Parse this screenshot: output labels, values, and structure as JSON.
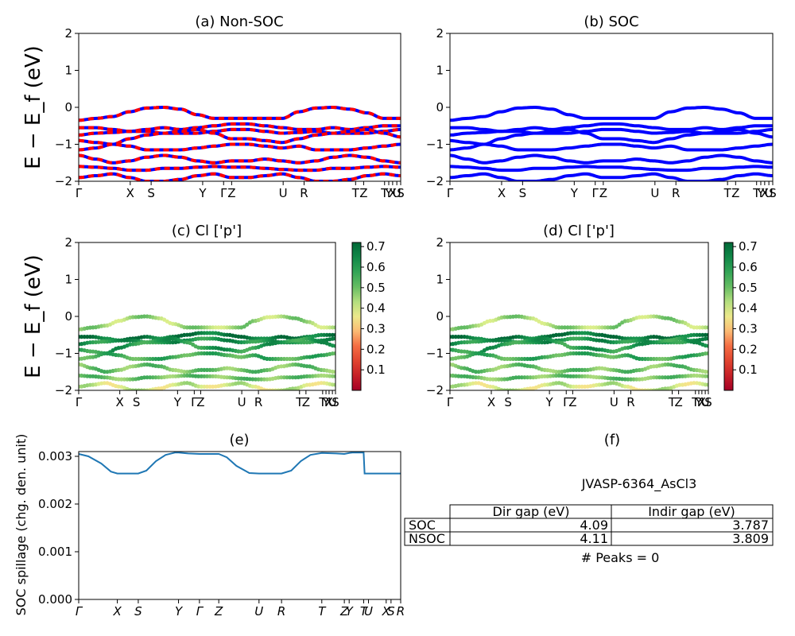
{
  "panels": {
    "a": {
      "title": "(a) Non-SOC"
    },
    "b": {
      "title": "(b) SOC"
    },
    "c": {
      "title": "(c)  Cl ['p']"
    },
    "d": {
      "title": "(d) Cl ['p']"
    },
    "e": {
      "title": "(e)"
    },
    "f": {
      "title": "(f)"
    }
  },
  "band_ylabel": "E − E_f (eV)",
  "spillage_ylabel": "SOC spillage (chg. den. unit)",
  "kpath": {
    "labels_top": [
      "Γ",
      "X",
      "S",
      "Y",
      "Γ",
      "Z",
      "U",
      "R",
      "T",
      "Z",
      "T",
      "Y",
      "X",
      "U",
      "S"
    ],
    "positions_top": [
      0,
      0.16,
      0.225,
      0.385,
      0.45,
      0.475,
      0.635,
      0.7,
      0.86,
      0.885,
      0.95,
      0.963,
      0.975,
      0.988,
      1.0
    ],
    "labels_mid": [
      "Γ",
      "X",
      "S",
      "Y",
      "Γ",
      "Z",
      "U",
      "R",
      "T",
      "Z",
      "T",
      "Y",
      "X",
      "U",
      "S"
    ],
    "positions_mid": [
      0,
      0.16,
      0.225,
      0.385,
      0.45,
      0.475,
      0.635,
      0.7,
      0.86,
      0.885,
      0.95,
      0.963,
      0.975,
      0.988,
      1.0
    ],
    "labels_e": [
      "Γ",
      "X",
      "S",
      "Y",
      "Γ",
      "Z",
      "U",
      "R",
      "T",
      "Z",
      "Y",
      "T",
      "U",
      "X",
      "S",
      "R"
    ],
    "positions_e": [
      0,
      0.12,
      0.185,
      0.31,
      0.375,
      0.435,
      0.56,
      0.63,
      0.755,
      0.825,
      0.84,
      0.885,
      0.9,
      0.955,
      0.97,
      1.0
    ]
  },
  "colorbar": {
    "ticks": [
      "0.1",
      "0.2",
      "0.3",
      "0.4",
      "0.5",
      "0.6",
      "0.7"
    ],
    "min": 0.0,
    "max": 0.72
  },
  "table": {
    "material": "JVASP-6364_AsCl3",
    "headers": [
      "",
      "Dir gap (eV)",
      "Indir gap (eV)"
    ],
    "rows": [
      [
        "SOC",
        "4.09",
        "3.787"
      ],
      [
        "NSOC",
        "4.11",
        "3.809"
      ]
    ],
    "peaks_text": "# Peaks = 0"
  },
  "chart_data": [
    {
      "type": "line",
      "panel": "a",
      "title": "(a) Non-SOC",
      "ylabel": "E − E_f (eV)",
      "ylim": [
        -2,
        2
      ],
      "yticks": [
        -2,
        -1,
        0,
        1,
        2
      ],
      "xlim": [
        0,
        1
      ],
      "grid": false,
      "colors": [
        "#ff0000",
        "#0000ff"
      ],
      "series_note": "",
      "bands": [
        [
          -0.35,
          -0.3,
          -0.25,
          -0.12,
          -0.02,
          0.0,
          -0.05,
          -0.2,
          -0.3,
          -0.3,
          -0.3,
          -0.3,
          -0.3,
          -0.12,
          -0.02,
          0.0,
          -0.05,
          -0.15,
          -0.3,
          -0.3
        ],
        [
          -0.55,
          -0.55,
          -0.6,
          -0.65,
          -0.6,
          -0.55,
          -0.6,
          -0.55,
          -0.5,
          -0.45,
          -0.45,
          -0.5,
          -0.55,
          -0.6,
          -0.6,
          -0.55,
          -0.6,
          -0.55,
          -0.5,
          -0.5
        ],
        [
          -0.75,
          -0.7,
          -0.68,
          -0.65,
          -0.65,
          -0.7,
          -0.7,
          -0.7,
          -0.65,
          -0.6,
          -0.6,
          -0.65,
          -0.7,
          -0.68,
          -0.65,
          -0.7,
          -0.7,
          -0.7,
          -0.65,
          -0.6
        ],
        [
          -0.9,
          -0.95,
          -1.0,
          -0.85,
          -0.75,
          -0.7,
          -0.65,
          -0.6,
          -0.7,
          -0.85,
          -0.85,
          -0.9,
          -0.95,
          -0.85,
          -0.75,
          -0.7,
          -0.65,
          -0.6,
          -0.7,
          -0.8
        ],
        [
          -1.15,
          -1.1,
          -1.0,
          -1.05,
          -1.15,
          -1.15,
          -1.15,
          -1.1,
          -1.05,
          -1.0,
          -1.0,
          -1.05,
          -1.1,
          -1.05,
          -1.15,
          -1.15,
          -1.15,
          -1.1,
          -1.05,
          -1.0
        ],
        [
          -1.3,
          -1.4,
          -1.5,
          -1.45,
          -1.35,
          -1.3,
          -1.35,
          -1.45,
          -1.5,
          -1.45,
          -1.45,
          -1.4,
          -1.45,
          -1.5,
          -1.45,
          -1.35,
          -1.3,
          -1.35,
          -1.45,
          -1.5
        ],
        [
          -1.6,
          -1.62,
          -1.65,
          -1.7,
          -1.7,
          -1.65,
          -1.65,
          -1.62,
          -1.6,
          -1.62,
          -1.62,
          -1.65,
          -1.68,
          -1.7,
          -1.7,
          -1.65,
          -1.65,
          -1.62,
          -1.6,
          -1.62
        ],
        [
          -1.9,
          -1.85,
          -1.8,
          -1.9,
          -2.0,
          -2.0,
          -1.95,
          -1.85,
          -1.8,
          -1.9,
          -1.9,
          -1.85,
          -1.8,
          -1.9,
          -2.0,
          -2.0,
          -1.95,
          -1.85,
          -1.8,
          -1.85
        ]
      ]
    },
    {
      "type": "line",
      "panel": "b",
      "title": "(b) SOC",
      "ylabel": "",
      "ylim": [
        -2,
        2
      ],
      "yticks": [
        -2,
        -1,
        0,
        1,
        2
      ],
      "xlim": [
        0,
        1
      ],
      "grid": false,
      "colors": [
        "#0000ff"
      ],
      "bands_ref": "a"
    },
    {
      "type": "scatter",
      "panel": "c",
      "title": "(c)  Cl ['p']",
      "ylabel": "E − E_f (eV)",
      "ylim": [
        -2,
        2
      ],
      "yticks": [
        -2,
        -1,
        0,
        1,
        2
      ],
      "xlim": [
        0,
        1
      ],
      "grid": false,
      "colormap": "RdYlGn",
      "colorbar_range": [
        0.0,
        0.72
      ],
      "band_weights": [
        0.45,
        0.68,
        0.62,
        0.6,
        0.55,
        0.5,
        0.5,
        0.4
      ],
      "bands_ref": "a"
    },
    {
      "type": "scatter",
      "panel": "d",
      "title": "(d) Cl ['p']",
      "ylabel": "",
      "ylim": [
        -2,
        2
      ],
      "yticks": [
        -2,
        -1,
        0,
        1,
        2
      ],
      "xlim": [
        0,
        1
      ],
      "grid": false,
      "colormap": "RdYlGn",
      "colorbar_range": [
        0.0,
        0.72
      ],
      "band_weights": [
        0.45,
        0.68,
        0.62,
        0.6,
        0.55,
        0.5,
        0.5,
        0.4
      ],
      "bands_ref": "a"
    },
    {
      "type": "line",
      "panel": "e",
      "title": "(e)",
      "ylabel": "SOC spillage (chg. den. unit)",
      "ylim": [
        0.0,
        0.0031
      ],
      "yticks": [
        0.0,
        0.001,
        0.002,
        0.003
      ],
      "ytick_labels": [
        "0.000",
        "0.001",
        "0.002",
        "0.003"
      ],
      "xlim": [
        0,
        1
      ],
      "grid": false,
      "color": "#1f77b4",
      "x": [
        0,
        0.03,
        0.07,
        0.1,
        0.12,
        0.15,
        0.185,
        0.21,
        0.24,
        0.27,
        0.3,
        0.31,
        0.34,
        0.375,
        0.4,
        0.435,
        0.46,
        0.49,
        0.53,
        0.56,
        0.59,
        0.63,
        0.66,
        0.69,
        0.72,
        0.755,
        0.8,
        0.825,
        0.84,
        0.85,
        0.885,
        0.888,
        0.9,
        0.955,
        1.0
      ],
      "y": [
        0.00305,
        0.003,
        0.00285,
        0.00268,
        0.00264,
        0.00264,
        0.00264,
        0.0027,
        0.0029,
        0.00303,
        0.00308,
        0.00308,
        0.00306,
        0.00305,
        0.00305,
        0.00305,
        0.00298,
        0.0028,
        0.00265,
        0.00264,
        0.00264,
        0.00264,
        0.0027,
        0.0029,
        0.00303,
        0.00307,
        0.00306,
        0.00305,
        0.00307,
        0.00308,
        0.00308,
        0.00264,
        0.00264,
        0.00264,
        0.00264
      ]
    }
  ]
}
